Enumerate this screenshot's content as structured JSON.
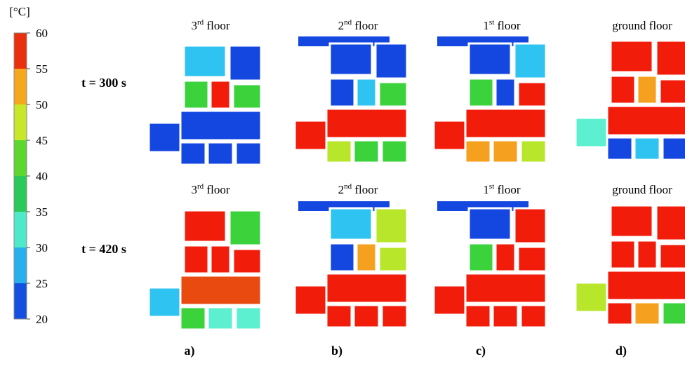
{
  "colorbar": {
    "unit": "[°C]",
    "ticks": [
      20,
      25,
      30,
      35,
      40,
      45,
      50,
      55,
      60
    ],
    "range": [
      20,
      60
    ],
    "colors": [
      "#1450e0",
      "#27b0ec",
      "#4fe8c8",
      "#2bc85a",
      "#5ed630",
      "#c8e62a",
      "#f5a81e",
      "#e8300e"
    ]
  },
  "rows": [
    {
      "label": "t = 300 s"
    },
    {
      "label": "t = 420 s"
    }
  ],
  "columns": [
    {
      "number": "3",
      "suffix": "rd",
      "rest": " floor",
      "panel": "a)"
    },
    {
      "number": "2",
      "suffix": "nd",
      "rest": " floor",
      "panel": "b)"
    },
    {
      "number": "1",
      "suffix": "st",
      "rest": " floor",
      "panel": "c)"
    },
    {
      "number": "",
      "suffix": "",
      "rest": "ground floor",
      "panel": "d)"
    }
  ]
}
